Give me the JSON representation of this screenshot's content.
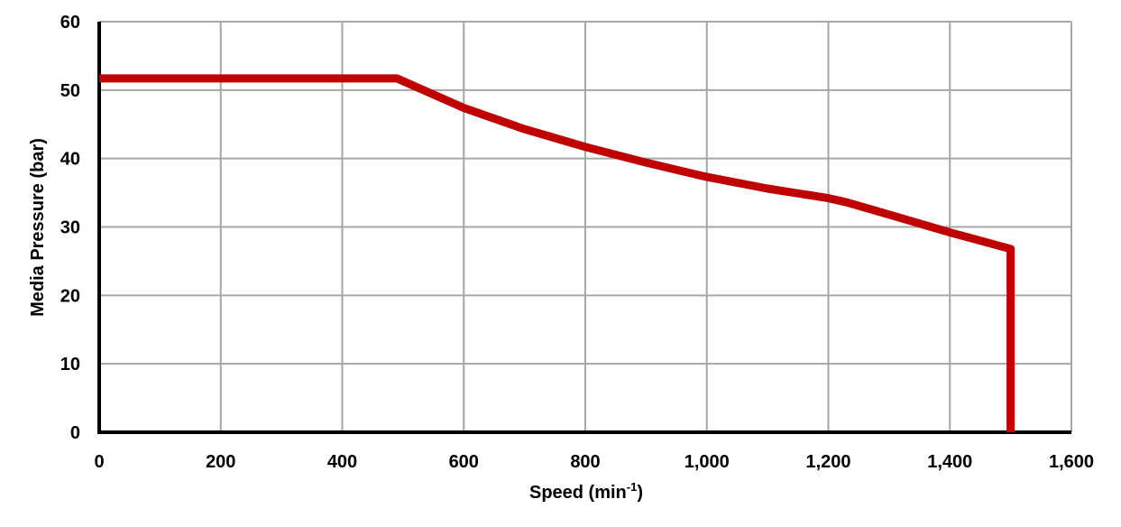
{
  "chart_data": {
    "type": "line",
    "title": "",
    "xlabel": "Speed (min⁻¹)",
    "xlabel_main": "Speed (min",
    "xlabel_sup": "-1",
    "xlabel_close": ")",
    "ylabel": "Media Pressure (bar)",
    "xlim": [
      0,
      1600
    ],
    "ylim": [
      0,
      60
    ],
    "grid": true,
    "legend": "none",
    "x_ticks": [
      0,
      200,
      400,
      600,
      800,
      1000,
      1200,
      1400,
      1600
    ],
    "x_tick_labels": [
      "0",
      "200",
      "400",
      "600",
      "800",
      "1,000",
      "1,200",
      "1,400",
      "1,600"
    ],
    "y_ticks": [
      0,
      10,
      20,
      30,
      40,
      50,
      60
    ],
    "y_tick_labels": [
      "0",
      "10",
      "20",
      "30",
      "40",
      "50",
      "60"
    ],
    "series": [
      {
        "name": "Media Pressure",
        "color": "#C00000",
        "x": [
          0,
          490,
          600,
          700,
          800,
          900,
          1000,
          1100,
          1200,
          1230,
          1300,
          1400,
          1500,
          1500
        ],
        "y": [
          51.7,
          51.7,
          47.4,
          44.3,
          41.7,
          39.4,
          37.3,
          35.6,
          34.2,
          33.6,
          31.8,
          29.2,
          26.8,
          0
        ]
      }
    ]
  },
  "colors": {
    "line": "#C00000",
    "grid": "#A6A6A6",
    "axis": "#000000"
  }
}
